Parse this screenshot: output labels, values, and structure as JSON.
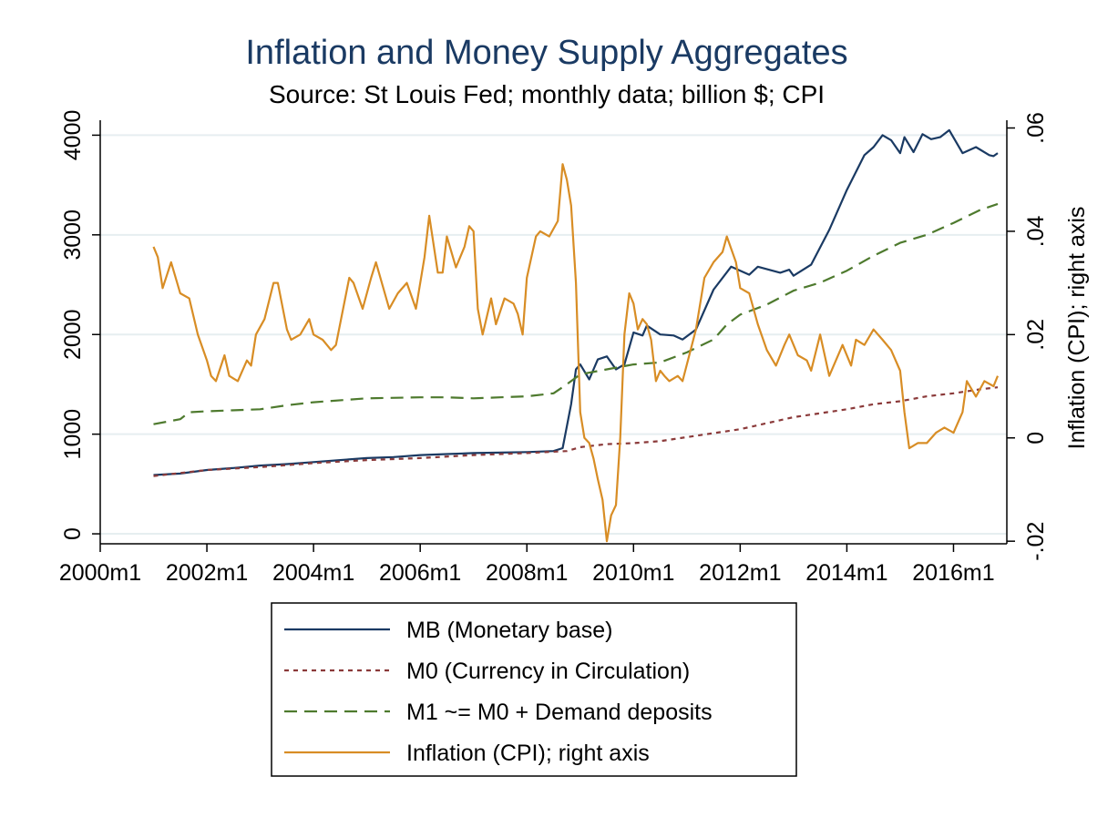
{
  "chart_data": {
    "type": "line",
    "title": "Inflation and Money Supply Aggregates",
    "subtitle": "Source: St Louis Fed; monthly data; billion $; CPI",
    "xlabel": "",
    "ylabel": "",
    "y2label": "Inflation (CPI); right axis",
    "xlim": [
      2000.0,
      2017.0
    ],
    "ylim": [
      -100,
      4150
    ],
    "y2lim": [
      -0.0205,
      0.0615
    ],
    "x_ticks": [
      {
        "value": 2000,
        "label": "2000m1"
      },
      {
        "value": 2002,
        "label": "2002m1"
      },
      {
        "value": 2004,
        "label": "2004m1"
      },
      {
        "value": 2006,
        "label": "2006m1"
      },
      {
        "value": 2008,
        "label": "2008m1"
      },
      {
        "value": 2010,
        "label": "2010m1"
      },
      {
        "value": 2012,
        "label": "2012m1"
      },
      {
        "value": 2014,
        "label": "2014m1"
      },
      {
        "value": 2016,
        "label": "2016m1"
      }
    ],
    "y_ticks": [
      {
        "value": 0,
        "label": "0"
      },
      {
        "value": 1000,
        "label": "1000"
      },
      {
        "value": 2000,
        "label": "2000"
      },
      {
        "value": 3000,
        "label": "3000"
      },
      {
        "value": 4000,
        "label": "4000"
      }
    ],
    "y2_ticks": [
      {
        "value": -0.02,
        "label": "-.02"
      },
      {
        "value": 0,
        "label": "0"
      },
      {
        "value": 0.02,
        "label": ".02"
      },
      {
        "value": 0.04,
        "label": ".04"
      },
      {
        "value": 0.06,
        "label": ".06"
      }
    ],
    "grid": true,
    "legend_position": "bottom",
    "series": [
      {
        "name": "MB (Monetary base)",
        "axis": "left",
        "color": "#1a3a63",
        "dash": "solid",
        "points": [
          [
            2001.0,
            590
          ],
          [
            2001.5,
            605
          ],
          [
            2002.0,
            640
          ],
          [
            2002.5,
            660
          ],
          [
            2003.0,
            685
          ],
          [
            2003.5,
            700
          ],
          [
            2004.0,
            720
          ],
          [
            2004.5,
            740
          ],
          [
            2005.0,
            760
          ],
          [
            2005.5,
            770
          ],
          [
            2006.0,
            790
          ],
          [
            2006.5,
            800
          ],
          [
            2007.0,
            810
          ],
          [
            2007.5,
            815
          ],
          [
            2008.0,
            820
          ],
          [
            2008.5,
            830
          ],
          [
            2008.67,
            860
          ],
          [
            2008.83,
            1300
          ],
          [
            2008.92,
            1650
          ],
          [
            2009.0,
            1700
          ],
          [
            2009.17,
            1550
          ],
          [
            2009.33,
            1750
          ],
          [
            2009.5,
            1780
          ],
          [
            2009.67,
            1650
          ],
          [
            2009.83,
            1700
          ],
          [
            2010.0,
            2020
          ],
          [
            2010.17,
            1990
          ],
          [
            2010.25,
            2090
          ],
          [
            2010.5,
            2000
          ],
          [
            2010.75,
            1990
          ],
          [
            2010.92,
            1950
          ],
          [
            2011.17,
            2050
          ],
          [
            2011.5,
            2450
          ],
          [
            2011.83,
            2680
          ],
          [
            2012.17,
            2600
          ],
          [
            2012.33,
            2680
          ],
          [
            2012.75,
            2620
          ],
          [
            2012.92,
            2650
          ],
          [
            2013.0,
            2590
          ],
          [
            2013.33,
            2700
          ],
          [
            2013.67,
            3050
          ],
          [
            2014.0,
            3450
          ],
          [
            2014.33,
            3800
          ],
          [
            2014.5,
            3880
          ],
          [
            2014.67,
            4000
          ],
          [
            2014.83,
            3950
          ],
          [
            2015.0,
            3820
          ],
          [
            2015.08,
            3980
          ],
          [
            2015.25,
            3830
          ],
          [
            2015.42,
            4010
          ],
          [
            2015.58,
            3960
          ],
          [
            2015.75,
            3980
          ],
          [
            2015.92,
            4050
          ],
          [
            2016.17,
            3820
          ],
          [
            2016.42,
            3880
          ],
          [
            2016.67,
            3800
          ],
          [
            2016.75,
            3790
          ],
          [
            2016.83,
            3820
          ]
        ]
      },
      {
        "name": "M0 (Currency in Circulation)",
        "axis": "left",
        "color": "#8b3a3a",
        "dash": "short",
        "points": [
          [
            2001.0,
            580
          ],
          [
            2001.5,
            610
          ],
          [
            2002.0,
            640
          ],
          [
            2003.0,
            670
          ],
          [
            2004.0,
            710
          ],
          [
            2005.0,
            740
          ],
          [
            2006.0,
            760
          ],
          [
            2007.0,
            790
          ],
          [
            2008.0,
            810
          ],
          [
            2008.75,
            830
          ],
          [
            2009.0,
            870
          ],
          [
            2009.5,
            900
          ],
          [
            2010.0,
            910
          ],
          [
            2010.5,
            930
          ],
          [
            2011.0,
            970
          ],
          [
            2012.0,
            1050
          ],
          [
            2012.5,
            1110
          ],
          [
            2013.0,
            1170
          ],
          [
            2013.5,
            1210
          ],
          [
            2014.0,
            1250
          ],
          [
            2014.5,
            1300
          ],
          [
            2015.0,
            1330
          ],
          [
            2015.5,
            1380
          ],
          [
            2016.0,
            1410
          ],
          [
            2016.5,
            1450
          ],
          [
            2016.83,
            1470
          ]
        ]
      },
      {
        "name": "M1 ~= M0 + Demand deposits",
        "axis": "left",
        "color": "#4e7a2e",
        "dash": "long",
        "points": [
          [
            2001.0,
            1100
          ],
          [
            2001.5,
            1150
          ],
          [
            2001.67,
            1220
          ],
          [
            2002.0,
            1230
          ],
          [
            2003.0,
            1250
          ],
          [
            2003.5,
            1290
          ],
          [
            2004.0,
            1320
          ],
          [
            2005.0,
            1360
          ],
          [
            2006.0,
            1370
          ],
          [
            2006.5,
            1370
          ],
          [
            2007.0,
            1360
          ],
          [
            2007.5,
            1370
          ],
          [
            2008.0,
            1380
          ],
          [
            2008.5,
            1410
          ],
          [
            2008.75,
            1500
          ],
          [
            2009.0,
            1600
          ],
          [
            2009.5,
            1650
          ],
          [
            2010.0,
            1700
          ],
          [
            2010.5,
            1720
          ],
          [
            2011.0,
            1820
          ],
          [
            2011.5,
            1950
          ],
          [
            2011.75,
            2100
          ],
          [
            2012.0,
            2200
          ],
          [
            2012.5,
            2300
          ],
          [
            2013.0,
            2440
          ],
          [
            2013.5,
            2520
          ],
          [
            2014.0,
            2640
          ],
          [
            2014.5,
            2790
          ],
          [
            2015.0,
            2920
          ],
          [
            2015.5,
            3000
          ],
          [
            2016.0,
            3120
          ],
          [
            2016.5,
            3250
          ],
          [
            2016.83,
            3310
          ]
        ]
      },
      {
        "name": "Inflation (CPI); right axis",
        "axis": "right",
        "color": "#d88d25",
        "dash": "solid",
        "points": [
          [
            2001.0,
            0.037
          ],
          [
            2001.08,
            0.035
          ],
          [
            2001.17,
            0.029
          ],
          [
            2001.33,
            0.034
          ],
          [
            2001.5,
            0.028
          ],
          [
            2001.67,
            0.027
          ],
          [
            2001.83,
            0.02
          ],
          [
            2002.0,
            0.015
          ],
          [
            2002.08,
            0.012
          ],
          [
            2002.17,
            0.011
          ],
          [
            2002.33,
            0.016
          ],
          [
            2002.42,
            0.012
          ],
          [
            2002.58,
            0.011
          ],
          [
            2002.75,
            0.015
          ],
          [
            2002.83,
            0.014
          ],
          [
            2002.92,
            0.02
          ],
          [
            2003.08,
            0.023
          ],
          [
            2003.25,
            0.03
          ],
          [
            2003.33,
            0.03
          ],
          [
            2003.5,
            0.021
          ],
          [
            2003.58,
            0.019
          ],
          [
            2003.75,
            0.02
          ],
          [
            2003.92,
            0.023
          ],
          [
            2004.0,
            0.02
          ],
          [
            2004.17,
            0.019
          ],
          [
            2004.25,
            0.018
          ],
          [
            2004.33,
            0.017
          ],
          [
            2004.42,
            0.018
          ],
          [
            2004.67,
            0.031
          ],
          [
            2004.75,
            0.03
          ],
          [
            2004.92,
            0.025
          ],
          [
            2005.08,
            0.031
          ],
          [
            2005.17,
            0.034
          ],
          [
            2005.42,
            0.025
          ],
          [
            2005.58,
            0.028
          ],
          [
            2005.75,
            0.03
          ],
          [
            2005.92,
            0.025
          ],
          [
            2006.08,
            0.035
          ],
          [
            2006.17,
            0.043
          ],
          [
            2006.33,
            0.032
          ],
          [
            2006.42,
            0.032
          ],
          [
            2006.5,
            0.039
          ],
          [
            2006.67,
            0.033
          ],
          [
            2006.83,
            0.037
          ],
          [
            2006.92,
            0.041
          ],
          [
            2007.0,
            0.04
          ],
          [
            2007.08,
            0.025
          ],
          [
            2007.17,
            0.02
          ],
          [
            2007.33,
            0.027
          ],
          [
            2007.42,
            0.022
          ],
          [
            2007.58,
            0.027
          ],
          [
            2007.75,
            0.026
          ],
          [
            2007.83,
            0.024
          ],
          [
            2007.92,
            0.02
          ],
          [
            2008.0,
            0.031
          ],
          [
            2008.17,
            0.039
          ],
          [
            2008.25,
            0.04
          ],
          [
            2008.42,
            0.039
          ],
          [
            2008.58,
            0.042
          ],
          [
            2008.67,
            0.053
          ],
          [
            2008.75,
            0.05
          ],
          [
            2008.83,
            0.045
          ],
          [
            2008.92,
            0.03
          ],
          [
            2009.0,
            0.005
          ],
          [
            2009.08,
            0.0
          ],
          [
            2009.17,
            -0.001
          ],
          [
            2009.25,
            -0.004
          ],
          [
            2009.33,
            -0.008
          ],
          [
            2009.42,
            -0.012
          ],
          [
            2009.5,
            -0.02
          ],
          [
            2009.58,
            -0.015
          ],
          [
            2009.67,
            -0.013
          ],
          [
            2009.75,
            0.0
          ],
          [
            2009.83,
            0.02
          ],
          [
            2009.92,
            0.028
          ],
          [
            2010.0,
            0.026
          ],
          [
            2010.08,
            0.021
          ],
          [
            2010.17,
            0.023
          ],
          [
            2010.25,
            0.022
          ],
          [
            2010.33,
            0.019
          ],
          [
            2010.42,
            0.011
          ],
          [
            2010.5,
            0.013
          ],
          [
            2010.58,
            0.012
          ],
          [
            2010.67,
            0.011
          ],
          [
            2010.83,
            0.012
          ],
          [
            2010.92,
            0.011
          ],
          [
            2011.17,
            0.021
          ],
          [
            2011.33,
            0.031
          ],
          [
            2011.5,
            0.034
          ],
          [
            2011.67,
            0.036
          ],
          [
            2011.75,
            0.039
          ],
          [
            2011.92,
            0.034
          ],
          [
            2012.0,
            0.029
          ],
          [
            2012.17,
            0.028
          ],
          [
            2012.33,
            0.022
          ],
          [
            2012.5,
            0.017
          ],
          [
            2012.67,
            0.014
          ],
          [
            2012.83,
            0.018
          ],
          [
            2012.92,
            0.02
          ],
          [
            2013.08,
            0.016
          ],
          [
            2013.25,
            0.015
          ],
          [
            2013.33,
            0.013
          ],
          [
            2013.5,
            0.02
          ],
          [
            2013.67,
            0.012
          ],
          [
            2013.92,
            0.018
          ],
          [
            2014.08,
            0.014
          ],
          [
            2014.17,
            0.019
          ],
          [
            2014.33,
            0.018
          ],
          [
            2014.5,
            0.021
          ],
          [
            2014.67,
            0.019
          ],
          [
            2014.83,
            0.017
          ],
          [
            2015.0,
            0.013
          ],
          [
            2015.08,
            0.005
          ],
          [
            2015.17,
            -0.002
          ],
          [
            2015.33,
            -0.001
          ],
          [
            2015.5,
            -0.001
          ],
          [
            2015.67,
            0.001
          ],
          [
            2015.83,
            0.002
          ],
          [
            2016.0,
            0.001
          ],
          [
            2016.17,
            0.005
          ],
          [
            2016.25,
            0.011
          ],
          [
            2016.42,
            0.008
          ],
          [
            2016.58,
            0.011
          ],
          [
            2016.75,
            0.01
          ],
          [
            2016.83,
            0.012
          ]
        ]
      }
    ]
  }
}
